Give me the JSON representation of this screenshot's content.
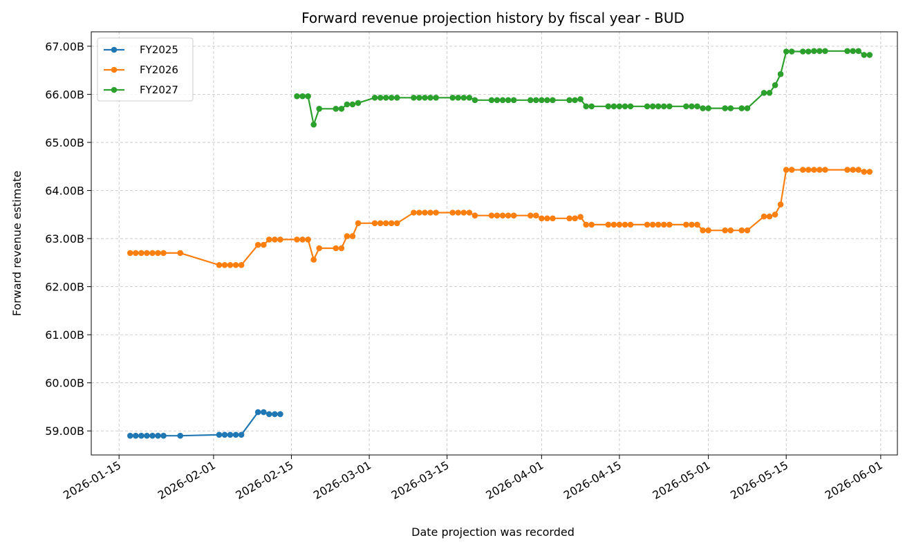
{
  "chart_data": {
    "type": "line",
    "title": "Forward revenue projection history by fiscal year - BUD",
    "xlabel": "Date projection was recorded",
    "ylabel": "Forward revenue estimate",
    "xlim": [
      "2026-01-10",
      "2026-06-04"
    ],
    "ylim": [
      58.5,
      67.3
    ],
    "x_ticks": [
      "2026-01-15",
      "2026-02-01",
      "2026-02-15",
      "2026-03-01",
      "2026-03-15",
      "2026-04-01",
      "2026-04-15",
      "2026-05-01",
      "2026-05-15",
      "2026-06-01"
    ],
    "y_ticks": [
      59,
      60,
      61,
      62,
      63,
      64,
      65,
      66,
      67
    ],
    "y_tick_labels": [
      "59.00B",
      "60.00B",
      "61.00B",
      "62.00B",
      "63.00B",
      "64.00B",
      "65.00B",
      "66.00B",
      "67.00B"
    ],
    "grid": true,
    "legend_position": "upper-left",
    "series": [
      {
        "name": "FY2025",
        "color": "#1f77b4",
        "points": [
          [
            "2026-01-17",
            58.9
          ],
          [
            "2026-01-18",
            58.9
          ],
          [
            "2026-01-19",
            58.9
          ],
          [
            "2026-01-20",
            58.9
          ],
          [
            "2026-01-21",
            58.9
          ],
          [
            "2026-01-22",
            58.9
          ],
          [
            "2026-01-23",
            58.9
          ],
          [
            "2026-01-26",
            58.9
          ],
          [
            "2026-02-02",
            58.92
          ],
          [
            "2026-02-03",
            58.92
          ],
          [
            "2026-02-04",
            58.92
          ],
          [
            "2026-02-05",
            58.92
          ],
          [
            "2026-02-06",
            58.92
          ],
          [
            "2026-02-09",
            59.39
          ],
          [
            "2026-02-10",
            59.39
          ],
          [
            "2026-02-11",
            59.35
          ],
          [
            "2026-02-12",
            59.35
          ],
          [
            "2026-02-13",
            59.35
          ]
        ]
      },
      {
        "name": "FY2026",
        "color": "#ff7f0e",
        "points": [
          [
            "2026-01-17",
            62.7
          ],
          [
            "2026-01-18",
            62.7
          ],
          [
            "2026-01-19",
            62.7
          ],
          [
            "2026-01-20",
            62.7
          ],
          [
            "2026-01-21",
            62.7
          ],
          [
            "2026-01-22",
            62.7
          ],
          [
            "2026-01-23",
            62.7
          ],
          [
            "2026-01-26",
            62.7
          ],
          [
            "2026-02-02",
            62.45
          ],
          [
            "2026-02-03",
            62.45
          ],
          [
            "2026-02-04",
            62.45
          ],
          [
            "2026-02-05",
            62.45
          ],
          [
            "2026-02-06",
            62.45
          ],
          [
            "2026-02-09",
            62.87
          ],
          [
            "2026-02-10",
            62.87
          ],
          [
            "2026-02-11",
            62.98
          ],
          [
            "2026-02-12",
            62.98
          ],
          [
            "2026-02-13",
            62.98
          ],
          [
            "2026-02-16",
            62.98
          ],
          [
            "2026-02-17",
            62.98
          ],
          [
            "2026-02-18",
            62.98
          ],
          [
            "2026-02-19",
            62.56
          ],
          [
            "2026-02-20",
            62.8
          ],
          [
            "2026-02-23",
            62.8
          ],
          [
            "2026-02-24",
            62.8
          ],
          [
            "2026-02-25",
            63.05
          ],
          [
            "2026-02-26",
            63.05
          ],
          [
            "2026-02-27",
            63.32
          ],
          [
            "2026-03-02",
            63.32
          ],
          [
            "2026-03-03",
            63.32
          ],
          [
            "2026-03-04",
            63.32
          ],
          [
            "2026-03-05",
            63.32
          ],
          [
            "2026-03-06",
            63.32
          ],
          [
            "2026-03-09",
            63.54
          ],
          [
            "2026-03-10",
            63.54
          ],
          [
            "2026-03-11",
            63.54
          ],
          [
            "2026-03-12",
            63.54
          ],
          [
            "2026-03-13",
            63.54
          ],
          [
            "2026-03-16",
            63.54
          ],
          [
            "2026-03-17",
            63.54
          ],
          [
            "2026-03-18",
            63.54
          ],
          [
            "2026-03-19",
            63.54
          ],
          [
            "2026-03-20",
            63.48
          ],
          [
            "2026-03-23",
            63.48
          ],
          [
            "2026-03-24",
            63.48
          ],
          [
            "2026-03-25",
            63.48
          ],
          [
            "2026-03-26",
            63.48
          ],
          [
            "2026-03-27",
            63.48
          ],
          [
            "2026-03-30",
            63.48
          ],
          [
            "2026-03-31",
            63.48
          ],
          [
            "2026-04-01",
            63.42
          ],
          [
            "2026-04-02",
            63.42
          ],
          [
            "2026-04-03",
            63.42
          ],
          [
            "2026-04-06",
            63.42
          ],
          [
            "2026-04-07",
            63.42
          ],
          [
            "2026-04-08",
            63.45
          ],
          [
            "2026-04-09",
            63.29
          ],
          [
            "2026-04-10",
            63.29
          ],
          [
            "2026-04-13",
            63.29
          ],
          [
            "2026-04-14",
            63.29
          ],
          [
            "2026-04-15",
            63.29
          ],
          [
            "2026-04-16",
            63.29
          ],
          [
            "2026-04-17",
            63.29
          ],
          [
            "2026-04-20",
            63.29
          ],
          [
            "2026-04-21",
            63.29
          ],
          [
            "2026-04-22",
            63.29
          ],
          [
            "2026-04-23",
            63.29
          ],
          [
            "2026-04-24",
            63.29
          ],
          [
            "2026-04-27",
            63.29
          ],
          [
            "2026-04-28",
            63.29
          ],
          [
            "2026-04-29",
            63.29
          ],
          [
            "2026-04-30",
            63.17
          ],
          [
            "2026-05-01",
            63.17
          ],
          [
            "2026-05-04",
            63.17
          ],
          [
            "2026-05-05",
            63.17
          ],
          [
            "2026-05-07",
            63.17
          ],
          [
            "2026-05-08",
            63.17
          ],
          [
            "2026-05-11",
            63.46
          ],
          [
            "2026-05-12",
            63.46
          ],
          [
            "2026-05-13",
            63.5
          ],
          [
            "2026-05-14",
            63.71
          ],
          [
            "2026-05-15",
            64.43
          ],
          [
            "2026-05-16",
            64.43
          ],
          [
            "2026-05-18",
            64.43
          ],
          [
            "2026-05-19",
            64.43
          ],
          [
            "2026-05-20",
            64.43
          ],
          [
            "2026-05-21",
            64.43
          ],
          [
            "2026-05-22",
            64.43
          ],
          [
            "2026-05-26",
            64.43
          ],
          [
            "2026-05-27",
            64.43
          ],
          [
            "2026-05-28",
            64.43
          ],
          [
            "2026-05-29",
            64.39
          ],
          [
            "2026-05-30",
            64.39
          ]
        ]
      },
      {
        "name": "FY2027",
        "color": "#2ca02c",
        "points": [
          [
            "2026-02-16",
            65.96
          ],
          [
            "2026-02-17",
            65.96
          ],
          [
            "2026-02-18",
            65.96
          ],
          [
            "2026-02-19",
            65.37
          ],
          [
            "2026-02-20",
            65.7
          ],
          [
            "2026-02-23",
            65.7
          ],
          [
            "2026-02-24",
            65.7
          ],
          [
            "2026-02-25",
            65.79
          ],
          [
            "2026-02-26",
            65.79
          ],
          [
            "2026-02-27",
            65.82
          ],
          [
            "2026-03-02",
            65.93
          ],
          [
            "2026-03-03",
            65.93
          ],
          [
            "2026-03-04",
            65.93
          ],
          [
            "2026-03-05",
            65.93
          ],
          [
            "2026-03-06",
            65.93
          ],
          [
            "2026-03-09",
            65.93
          ],
          [
            "2026-03-10",
            65.93
          ],
          [
            "2026-03-11",
            65.93
          ],
          [
            "2026-03-12",
            65.93
          ],
          [
            "2026-03-13",
            65.93
          ],
          [
            "2026-03-16",
            65.93
          ],
          [
            "2026-03-17",
            65.93
          ],
          [
            "2026-03-18",
            65.93
          ],
          [
            "2026-03-19",
            65.93
          ],
          [
            "2026-03-20",
            65.88
          ],
          [
            "2026-03-23",
            65.88
          ],
          [
            "2026-03-24",
            65.88
          ],
          [
            "2026-03-25",
            65.88
          ],
          [
            "2026-03-26",
            65.88
          ],
          [
            "2026-03-27",
            65.88
          ],
          [
            "2026-03-30",
            65.88
          ],
          [
            "2026-03-31",
            65.88
          ],
          [
            "2026-04-01",
            65.88
          ],
          [
            "2026-04-02",
            65.88
          ],
          [
            "2026-04-03",
            65.88
          ],
          [
            "2026-04-06",
            65.88
          ],
          [
            "2026-04-07",
            65.88
          ],
          [
            "2026-04-08",
            65.9
          ],
          [
            "2026-04-09",
            65.75
          ],
          [
            "2026-04-10",
            65.75
          ],
          [
            "2026-04-13",
            65.75
          ],
          [
            "2026-04-14",
            65.75
          ],
          [
            "2026-04-15",
            65.75
          ],
          [
            "2026-04-16",
            65.75
          ],
          [
            "2026-04-17",
            65.75
          ],
          [
            "2026-04-20",
            65.75
          ],
          [
            "2026-04-21",
            65.75
          ],
          [
            "2026-04-22",
            65.75
          ],
          [
            "2026-04-23",
            65.75
          ],
          [
            "2026-04-24",
            65.75
          ],
          [
            "2026-04-27",
            65.75
          ],
          [
            "2026-04-28",
            65.75
          ],
          [
            "2026-04-29",
            65.75
          ],
          [
            "2026-04-30",
            65.71
          ],
          [
            "2026-05-01",
            65.71
          ],
          [
            "2026-05-04",
            65.71
          ],
          [
            "2026-05-05",
            65.71
          ],
          [
            "2026-05-07",
            65.71
          ],
          [
            "2026-05-08",
            65.71
          ],
          [
            "2026-05-11",
            66.03
          ],
          [
            "2026-05-12",
            66.03
          ],
          [
            "2026-05-13",
            66.19
          ],
          [
            "2026-05-14",
            66.42
          ],
          [
            "2026-05-15",
            66.89
          ],
          [
            "2026-05-16",
            66.89
          ],
          [
            "2026-05-18",
            66.89
          ],
          [
            "2026-05-19",
            66.89
          ],
          [
            "2026-05-20",
            66.9
          ],
          [
            "2026-05-21",
            66.9
          ],
          [
            "2026-05-22",
            66.9
          ],
          [
            "2026-05-26",
            66.9
          ],
          [
            "2026-05-27",
            66.9
          ],
          [
            "2026-05-28",
            66.9
          ],
          [
            "2026-05-29",
            66.82
          ],
          [
            "2026-05-30",
            66.82
          ]
        ]
      }
    ]
  }
}
